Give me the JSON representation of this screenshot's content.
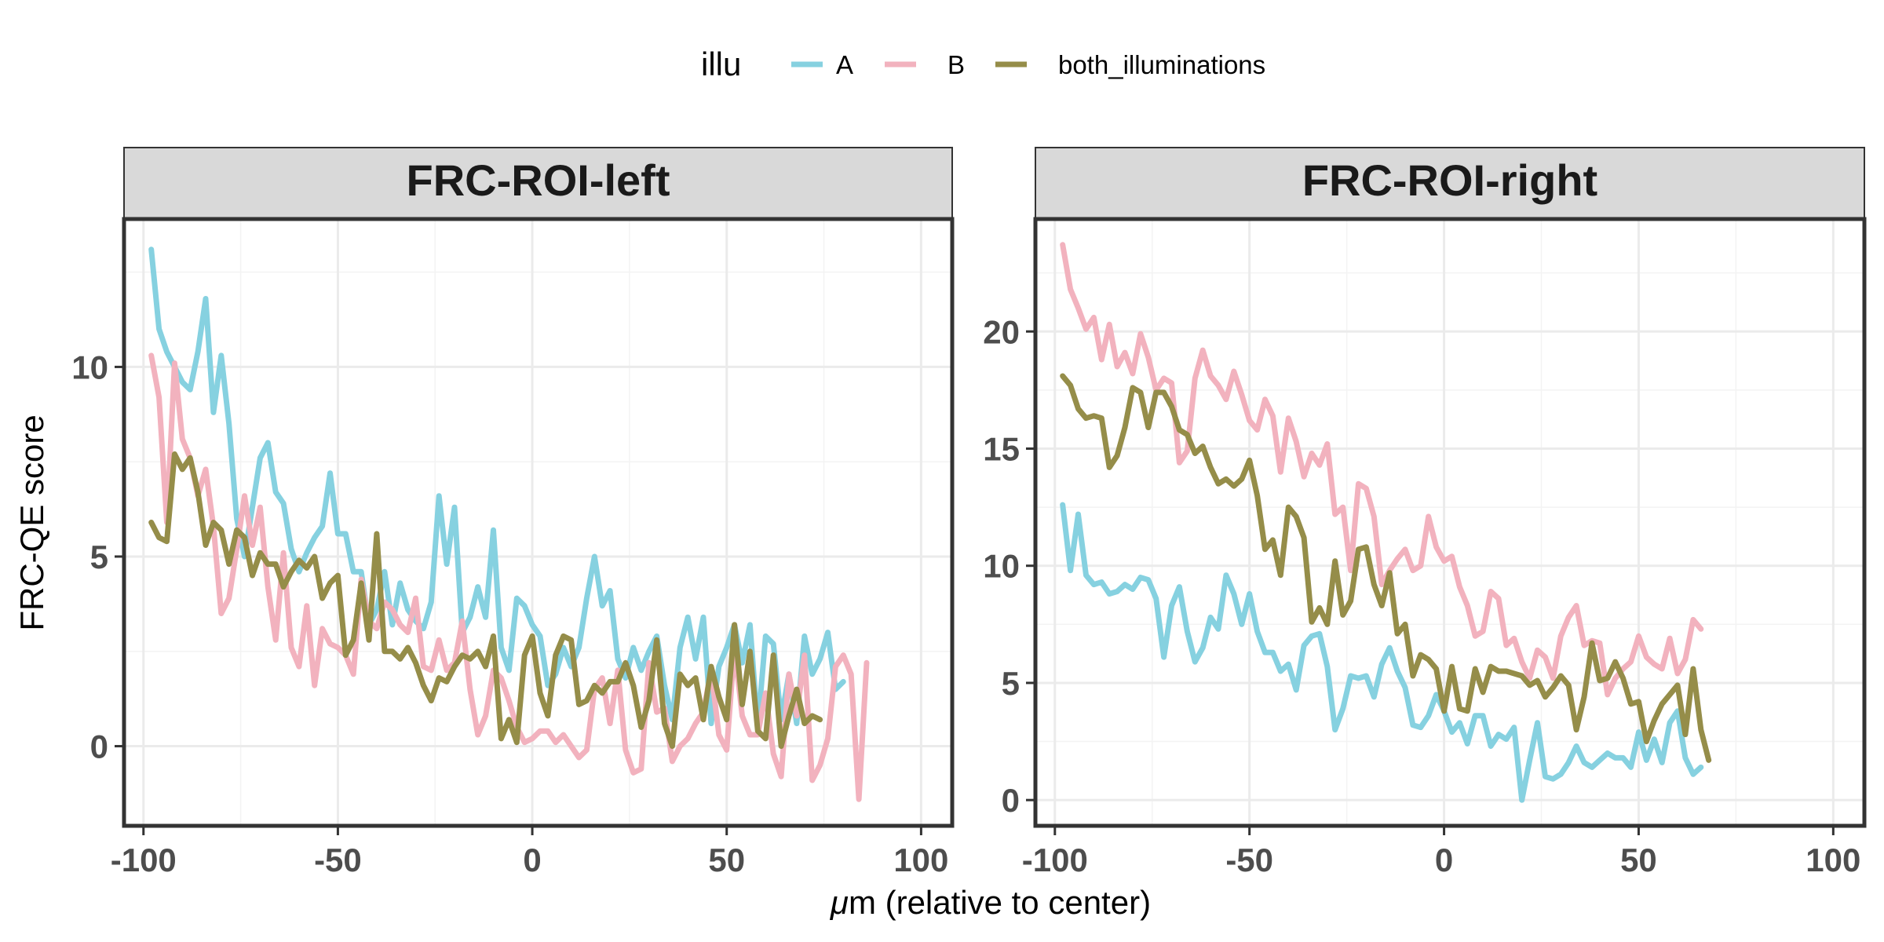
{
  "chart_data": {
    "type": "line",
    "xlabel_prefix": "μ",
    "xlabel_rest": "m (relative to center)",
    "ylabel": "FRC-QE score",
    "legend": {
      "title": "illu",
      "position": "top",
      "entries": [
        {
          "label": "A",
          "color": "#86d1e0"
        },
        {
          "label": "B",
          "color": "#f2b2be"
        },
        {
          "label": "both_illuminations",
          "color": "#958d49"
        }
      ]
    },
    "x": [
      -98,
      -96,
      -94,
      -92,
      -90,
      -88,
      -86,
      -84,
      -82,
      -80,
      -78,
      -76,
      -74,
      -72,
      -70,
      -68,
      -66,
      -64,
      -62,
      -60,
      -58,
      -56,
      -54,
      -52,
      -50,
      -48,
      -46,
      -44,
      -42,
      -40,
      -38,
      -36,
      -34,
      -32,
      -30,
      -28,
      -26,
      -24,
      -22,
      -20,
      -18,
      -16,
      -14,
      -12,
      -10,
      -8,
      -6,
      -4,
      -2,
      0,
      2,
      4,
      6,
      8,
      10,
      12,
      14,
      16,
      18,
      20,
      22,
      24,
      26,
      28,
      30,
      32,
      34,
      36,
      38,
      40,
      42,
      44,
      46,
      48,
      50,
      52,
      54,
      56,
      58,
      60,
      62,
      64,
      66,
      68,
      70,
      72,
      74,
      76,
      78,
      80,
      82,
      84,
      86,
      88,
      90,
      92,
      94,
      96,
      98
    ],
    "panels": [
      {
        "title": "FRC-ROI-left",
        "xlim": [
          -105,
          108
        ],
        "ylim": [
          -2.1,
          13.9
        ],
        "xticks": [
          -100,
          -50,
          0,
          50,
          100
        ],
        "yticks": [
          0,
          5,
          10
        ],
        "series": [
          {
            "name": "A",
            "values": [
              13.1,
              11.0,
              10.4,
              10.0,
              9.6,
              9.4,
              10.4,
              11.8,
              8.8,
              10.3,
              8.5,
              6.0,
              5.0,
              6.3,
              7.6,
              8.0,
              6.7,
              6.4,
              5.2,
              4.6,
              5.1,
              5.5,
              5.8,
              7.2,
              5.6,
              5.6,
              4.6,
              4.6,
              3.2,
              3.6,
              4.6,
              3.2,
              4.3,
              3.6,
              3.3,
              3.1,
              3.8,
              6.6,
              4.8,
              6.3,
              3.0,
              3.4,
              4.2,
              3.4,
              5.7,
              2.6,
              2.0,
              3.9,
              3.7,
              3.2,
              2.9,
              1.6,
              1.9,
              2.6,
              2.1,
              2.6,
              3.9,
              5.0,
              3.7,
              4.1,
              2.3,
              1.8,
              2.6,
              2.0,
              2.5,
              2.9,
              1.6,
              0.7,
              2.6,
              3.4,
              2.3,
              3.4,
              0.6,
              2.1,
              2.6,
              3.2,
              2.2,
              3.2,
              0.5,
              2.9,
              2.7,
              0.7,
              1.9,
              0.6,
              2.9,
              1.9,
              2.3,
              3.0,
              1.5,
              1.7
            ],
            "note": "values start at x=-98"
          },
          {
            "name": "B",
            "values": [
              10.3,
              9.2,
              5.9,
              10.1,
              8.1,
              7.6,
              6.6,
              7.3,
              5.8,
              3.5,
              3.9,
              5.2,
              6.6,
              5.3,
              6.3,
              4.2,
              2.8,
              5.1,
              2.6,
              2.1,
              3.7,
              1.6,
              3.1,
              2.7,
              2.6,
              2.4,
              1.9,
              4.4,
              3.3,
              3.1,
              3.8,
              3.6,
              3.2,
              3.0,
              3.9,
              2.1,
              2.0,
              2.8,
              2.0,
              2.2,
              3.3,
              1.5,
              0.3,
              0.8,
              2.0,
              1.8,
              1.2,
              0.5,
              0.1,
              0.2,
              0.4,
              0.4,
              0.1,
              0.3,
              0.0,
              -0.3,
              -0.1,
              1.5,
              1.8,
              0.6,
              2.0,
              -0.1,
              -0.7,
              -0.6,
              2.2,
              0.9,
              1.0,
              -0.4,
              0.0,
              0.2,
              0.6,
              0.9,
              2.0,
              0.3,
              -0.1,
              2.6,
              0.8,
              0.3,
              0.3,
              1.4,
              -0.2,
              -0.8,
              1.9,
              0.8,
              2.4,
              -0.9,
              -0.5,
              0.2,
              2.1,
              2.4,
              1.9,
              -1.4,
              2.2
            ]
          },
          {
            "name": "both_illuminations",
            "values": [
              5.9,
              5.5,
              5.4,
              7.7,
              7.3,
              7.6,
              6.7,
              5.3,
              5.9,
              5.7,
              4.8,
              5.7,
              5.5,
              4.5,
              5.1,
              4.8,
              4.8,
              4.2,
              4.6,
              4.9,
              4.7,
              5.0,
              3.9,
              4.3,
              4.5,
              2.4,
              2.8,
              4.3,
              2.8,
              5.6,
              2.5,
              2.5,
              2.3,
              2.6,
              2.2,
              1.6,
              1.2,
              1.8,
              1.7,
              2.1,
              2.4,
              2.3,
              2.5,
              2.1,
              2.9,
              0.2,
              0.7,
              0.1,
              2.4,
              2.9,
              1.4,
              0.8,
              2.4,
              2.9,
              2.8,
              1.1,
              1.2,
              1.6,
              1.4,
              1.7,
              1.7,
              2.2,
              1.6,
              0.5,
              1.2,
              2.8,
              0.6,
              0.0,
              1.9,
              1.6,
              1.8,
              0.7,
              2.1,
              1.3,
              0.7,
              3.2,
              1.1,
              2.5,
              0.4,
              0.2,
              2.4,
              0.0,
              0.8,
              1.5,
              0.6,
              0.8,
              0.7
            ]
          }
        ]
      },
      {
        "title": "FRC-ROI-right",
        "xlim": [
          -105,
          108
        ],
        "ylim": [
          -1.1,
          24.8
        ],
        "xticks": [
          -100,
          -50,
          0,
          50,
          100
        ],
        "yticks": [
          0,
          5,
          10,
          15,
          20
        ],
        "series": [
          {
            "name": "A",
            "values": [
              12.6,
              9.8,
              12.2,
              9.6,
              9.2,
              9.3,
              8.8,
              8.9,
              9.2,
              9.0,
              9.5,
              9.4,
              8.6,
              6.1,
              8.3,
              9.1,
              7.2,
              5.9,
              6.5,
              7.8,
              7.3,
              9.6,
              8.8,
              7.5,
              8.8,
              7.2,
              6.3,
              6.3,
              5.5,
              5.8,
              4.7,
              6.6,
              7.0,
              7.1,
              5.7,
              3.0,
              3.9,
              5.3,
              5.2,
              5.3,
              4.4,
              5.8,
              6.5,
              5.5,
              4.8,
              3.2,
              3.1,
              3.6,
              4.5,
              3.8,
              2.9,
              3.3,
              2.4,
              3.6,
              3.6,
              2.3,
              2.8,
              2.6,
              3.1,
              0.0,
              1.7,
              3.3,
              1.0,
              0.9,
              1.1,
              1.6,
              2.3,
              1.6,
              1.4,
              1.7,
              2.0,
              1.8,
              1.8,
              1.4,
              2.9,
              1.7,
              2.6,
              1.6,
              3.3,
              3.8,
              1.8,
              1.1,
              1.4
            ]
          },
          {
            "name": "B",
            "values": [
              23.7,
              21.8,
              21.0,
              20.1,
              20.6,
              18.8,
              20.3,
              18.5,
              19.1,
              18.2,
              19.9,
              18.9,
              17.5,
              18.0,
              17.8,
              14.4,
              14.9,
              18.0,
              19.2,
              18.1,
              17.7,
              17.1,
              18.3,
              17.3,
              16.2,
              15.8,
              17.1,
              16.4,
              14.0,
              16.3,
              15.3,
              13.8,
              14.8,
              14.3,
              15.2,
              12.2,
              12.5,
              9.8,
              13.5,
              13.3,
              12.1,
              9.2,
              9.8,
              10.3,
              10.7,
              9.8,
              10.0,
              12.1,
              10.8,
              10.2,
              10.4,
              9.1,
              8.3,
              7.0,
              7.2,
              8.9,
              8.6,
              6.6,
              6.9,
              5.9,
              5.2,
              6.4,
              6.1,
              5.2,
              7.0,
              7.8,
              8.3,
              6.6,
              6.8,
              6.7,
              4.5,
              5.2,
              5.6,
              5.9,
              7.0,
              6.1,
              5.8,
              5.6,
              6.9,
              5.4,
              6.0,
              7.7,
              7.3
            ]
          },
          {
            "name": "both_illuminations",
            "values": [
              18.1,
              17.7,
              16.7,
              16.3,
              16.4,
              16.3,
              14.2,
              14.7,
              15.9,
              17.6,
              17.4,
              15.9,
              17.4,
              17.4,
              16.8,
              15.8,
              15.6,
              14.8,
              15.1,
              14.2,
              13.5,
              13.7,
              13.4,
              13.7,
              14.5,
              13.0,
              10.7,
              11.1,
              9.6,
              12.5,
              12.1,
              11.2,
              7.6,
              8.2,
              7.5,
              10.2,
              7.9,
              8.5,
              10.7,
              10.8,
              9.2,
              8.3,
              9.7,
              7.1,
              7.5,
              5.3,
              6.2,
              6.0,
              5.6,
              3.8,
              5.7,
              3.9,
              3.8,
              5.6,
              4.6,
              5.7,
              5.5,
              5.5,
              5.4,
              5.3,
              4.9,
              5.1,
              4.4,
              4.8,
              5.3,
              4.9,
              3.0,
              4.4,
              6.7,
              5.1,
              5.2,
              5.9,
              5.2,
              4.1,
              4.2,
              2.5,
              3.4,
              4.1,
              4.5,
              4.9,
              2.8,
              5.6,
              3.0,
              1.7
            ]
          }
        ]
      }
    ]
  }
}
